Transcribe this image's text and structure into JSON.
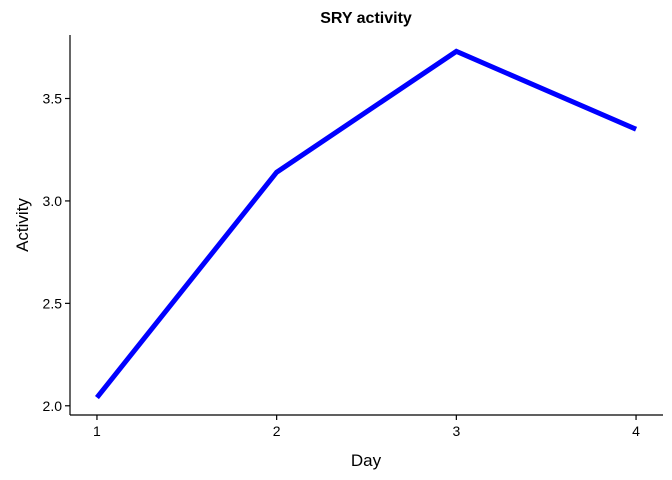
{
  "chart_data": {
    "type": "line",
    "title": "SRY activity",
    "xlabel": "Day",
    "ylabel": "Activity",
    "x": [
      1,
      2,
      3,
      4
    ],
    "series": [
      {
        "values": [
          2.04,
          3.14,
          3.73,
          3.35
        ],
        "color": "#0000ff"
      }
    ],
    "xticks": [
      "1",
      "2",
      "3",
      "4"
    ],
    "yticks": [
      "2.0",
      "2.5",
      "3.0",
      "3.5"
    ],
    "ytick_values": [
      2.0,
      2.5,
      3.0,
      3.5
    ],
    "xlim": [
      0.85,
      4.15
    ],
    "ylim": [
      1.955,
      3.81
    ],
    "grid": false,
    "legend": "none"
  }
}
